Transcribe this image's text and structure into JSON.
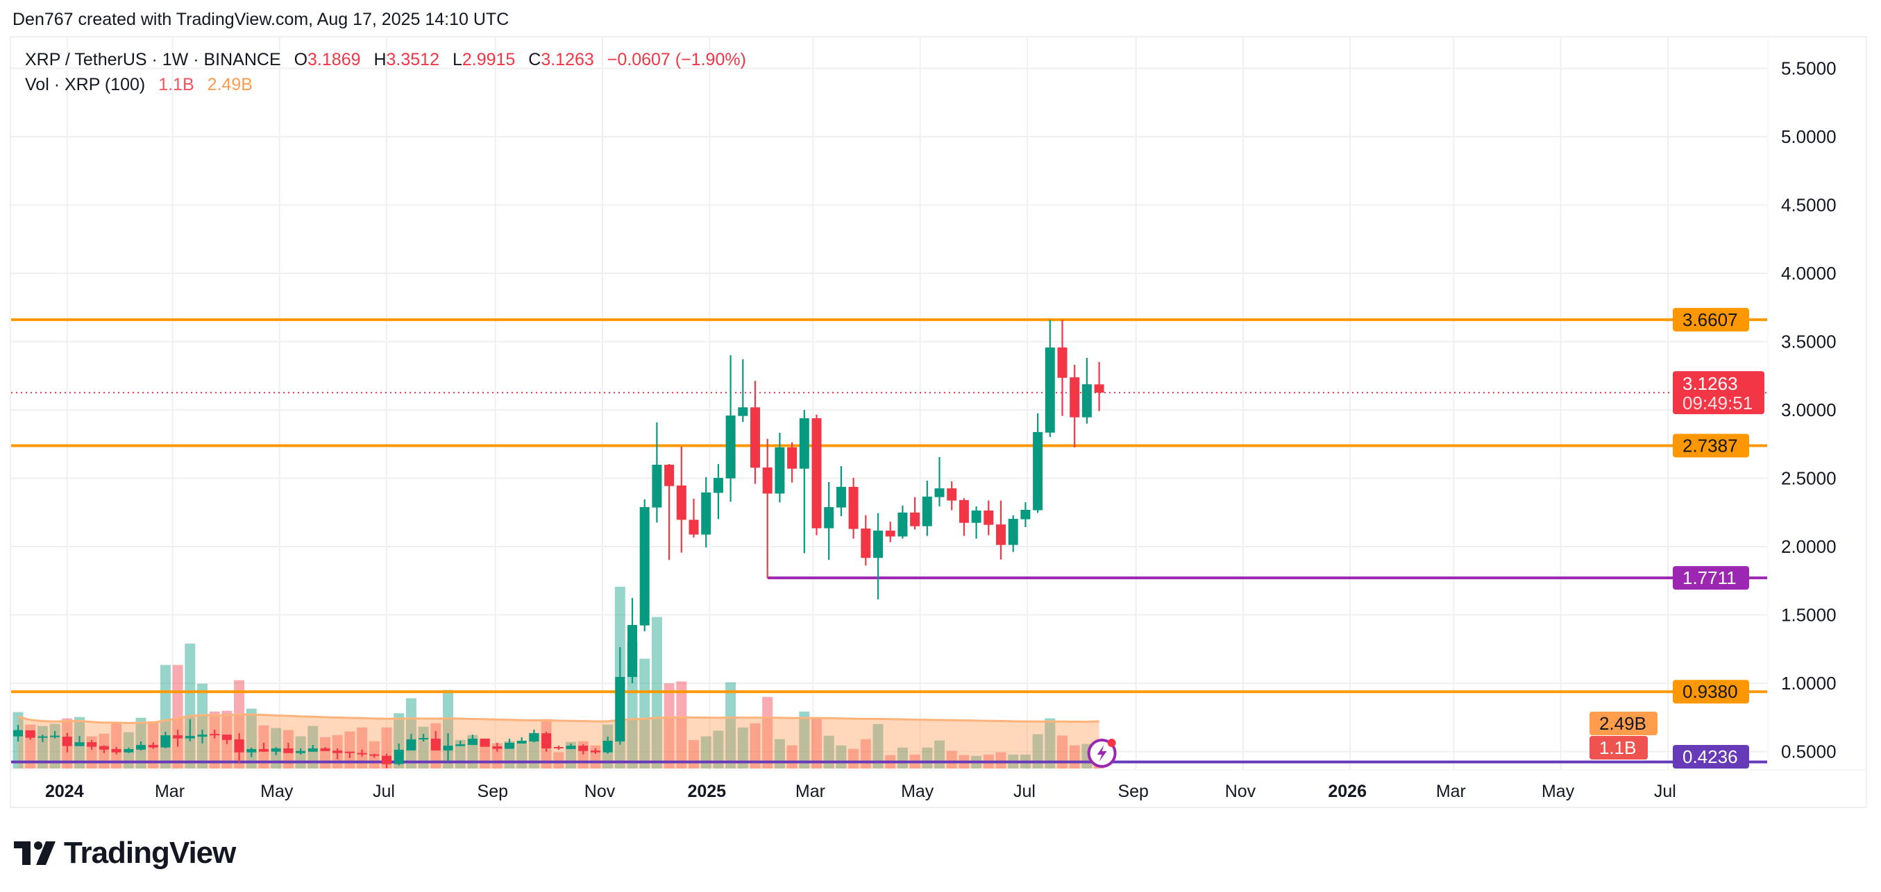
{
  "credit": "Den767 created with TradingView.com, Aug 17, 2025 14:10 UTC",
  "legend": {
    "symbol": "XRP / TetherUS · 1W · BINANCE",
    "o_label": "O",
    "o": "3.1869",
    "h_label": "H",
    "h": "3.3512",
    "l_label": "L",
    "l": "2.9915",
    "c_label": "C",
    "c": "3.1263",
    "change": "−0.0607 (−1.90%)",
    "vol_label": "Vol · XRP (100)",
    "vol": "1.1B",
    "vol_ma": "2.49B"
  },
  "logo": {
    "text": "TradingView"
  },
  "colors": {
    "up": "#089981",
    "down": "#f23645",
    "level_orange": "#ff9800",
    "level_purple": "#9c27b0",
    "level_violet": "#673ab7",
    "vol_ma": "#ff9d4d"
  },
  "chart_data": {
    "type": "candlestick",
    "interval": "1W",
    "yscale": "linear",
    "ylim": [
      0.4,
      5.6
    ],
    "grid": true,
    "price_ticks": [
      "5.5000",
      "5.0000",
      "4.5000",
      "4.0000",
      "3.5000",
      "3.0000",
      "2.5000",
      "2.0000",
      "1.5000",
      "1.0000",
      "0.5000"
    ],
    "time_ticks": [
      {
        "label": "2024",
        "date": "2024-01-01",
        "bold": true
      },
      {
        "label": "Mar",
        "date": "2024-03-01"
      },
      {
        "label": "May",
        "date": "2024-05-01"
      },
      {
        "label": "Jul",
        "date": "2024-07-01"
      },
      {
        "label": "Sep",
        "date": "2024-09-01"
      },
      {
        "label": "Nov",
        "date": "2024-11-01"
      },
      {
        "label": "2025",
        "date": "2025-01-01",
        "bold": true
      },
      {
        "label": "Mar",
        "date": "2025-03-01"
      },
      {
        "label": "May",
        "date": "2025-05-01"
      },
      {
        "label": "Jul",
        "date": "2025-07-01"
      },
      {
        "label": "Sep",
        "date": "2025-09-01"
      },
      {
        "label": "Nov",
        "date": "2025-11-01"
      },
      {
        "label": "2026",
        "date": "2026-01-01",
        "bold": true
      },
      {
        "label": "Mar",
        "date": "2026-03-01"
      },
      {
        "label": "May",
        "date": "2026-05-01"
      },
      {
        "label": "Jul",
        "date": "2026-07-01"
      }
    ],
    "levels": [
      {
        "price": 3.6607,
        "label": "3.6607",
        "color": "#ff9800"
      },
      {
        "price": 2.7387,
        "label": "2.7387",
        "color": "#ff9800"
      },
      {
        "price": 1.7711,
        "label": "1.7711",
        "color": "#9c27b0",
        "from": "2025-02-03"
      },
      {
        "price": 0.938,
        "label": "0.9380",
        "color": "#ff9800"
      },
      {
        "price": 0.4236,
        "label": "0.4236",
        "color": "#673ab7"
      }
    ],
    "last_price": {
      "value": 3.1263,
      "label": "3.1263",
      "countdown": "09:49:51"
    },
    "volume_labels": {
      "ma": "2.49B",
      "last": "1.1B"
    },
    "columns": [
      "date",
      "open",
      "high",
      "low",
      "close",
      "volume_B"
    ],
    "candles": [
      [
        "2023-12-04",
        0.611,
        0.695,
        0.574,
        0.657,
        2.98
      ],
      [
        "2023-12-11",
        0.655,
        0.655,
        0.586,
        0.601,
        2.32
      ],
      [
        "2023-12-18",
        0.601,
        0.624,
        0.57,
        0.611,
        2.25
      ],
      [
        "2023-12-25",
        0.606,
        0.65,
        0.596,
        0.616,
        2.36
      ],
      [
        "2024-01-01",
        0.609,
        0.636,
        0.494,
        0.54,
        2.65
      ],
      [
        "2024-01-08",
        0.54,
        0.614,
        0.54,
        0.568,
        2.72
      ],
      [
        "2024-01-15",
        0.568,
        0.584,
        0.513,
        0.535,
        1.7
      ],
      [
        "2024-01-22",
        0.54,
        0.545,
        0.489,
        0.514,
        1.84
      ],
      [
        "2024-01-29",
        0.518,
        0.533,
        0.479,
        0.494,
        2.39
      ],
      [
        "2024-02-05",
        0.494,
        0.528,
        0.489,
        0.518,
        1.92
      ],
      [
        "2024-02-12",
        0.514,
        0.574,
        0.508,
        0.548,
        2.68
      ],
      [
        "2024-02-19",
        0.548,
        0.568,
        0.52,
        0.53,
        2.5
      ],
      [
        "2024-02-26",
        0.53,
        0.645,
        0.525,
        0.619,
        5.47
      ],
      [
        "2024-03-04",
        0.619,
        0.66,
        0.535,
        0.596,
        5.47
      ],
      [
        "2024-03-11",
        0.596,
        0.736,
        0.575,
        0.614,
        6.6
      ],
      [
        "2024-03-18",
        0.609,
        0.66,
        0.56,
        0.624,
        4.48
      ],
      [
        "2024-03-25",
        0.629,
        0.66,
        0.596,
        0.619,
        3.01
      ],
      [
        "2024-04-01",
        0.624,
        0.624,
        0.555,
        0.585,
        3.05
      ],
      [
        "2024-04-08",
        0.589,
        0.634,
        0.413,
        0.494,
        4.66
      ],
      [
        "2024-04-15",
        0.494,
        0.528,
        0.459,
        0.518,
        3.16
      ],
      [
        "2024-04-22",
        0.518,
        0.564,
        0.499,
        0.499,
        2.28
      ],
      [
        "2024-04-29",
        0.499,
        0.533,
        0.474,
        0.523,
        2.14
      ],
      [
        "2024-05-06",
        0.523,
        0.564,
        0.489,
        0.489,
        2.03
      ],
      [
        "2024-05-13",
        0.489,
        0.523,
        0.479,
        0.504,
        1.7
      ],
      [
        "2024-05-20",
        0.499,
        0.548,
        0.499,
        0.523,
        2.25
      ],
      [
        "2024-05-27",
        0.523,
        0.533,
        0.504,
        0.504,
        1.66
      ],
      [
        "2024-06-03",
        0.507,
        0.523,
        0.443,
        0.489,
        1.77
      ],
      [
        "2024-06-10",
        0.499,
        0.499,
        0.453,
        0.489,
        1.96
      ],
      [
        "2024-06-17",
        0.489,
        0.514,
        0.464,
        0.479,
        2.17
      ],
      [
        "2024-06-24",
        0.479,
        0.484,
        0.453,
        0.469,
        1.44
      ],
      [
        "2024-07-01",
        0.469,
        0.484,
        0.379,
        0.408,
        2.17
      ],
      [
        "2024-07-08",
        0.408,
        0.558,
        0.399,
        0.513,
        2.92
      ],
      [
        "2024-07-15",
        0.508,
        0.629,
        0.508,
        0.589,
        3.71
      ],
      [
        "2024-07-22",
        0.589,
        0.629,
        0.574,
        0.599,
        2.21
      ],
      [
        "2024-07-29",
        0.594,
        0.65,
        0.508,
        0.508,
        2.39
      ],
      [
        "2024-08-05",
        0.508,
        0.634,
        0.428,
        0.543,
        4.15
      ],
      [
        "2024-08-12",
        0.54,
        0.579,
        0.54,
        0.553,
        1.51
      ],
      [
        "2024-08-19",
        0.548,
        0.624,
        0.548,
        0.594,
        1.77
      ],
      [
        "2024-08-26",
        0.594,
        0.594,
        0.535,
        0.535,
        1.59
      ],
      [
        "2024-09-02",
        0.538,
        0.564,
        0.499,
        0.52,
        1.33
      ],
      [
        "2024-09-09",
        0.52,
        0.594,
        0.52,
        0.564,
        1.44
      ],
      [
        "2024-09-16",
        0.558,
        0.604,
        0.558,
        0.579,
        1.3
      ],
      [
        "2024-09-23",
        0.574,
        0.66,
        0.568,
        0.634,
        1.88
      ],
      [
        "2024-09-30",
        0.634,
        0.645,
        0.499,
        0.523,
        2.61
      ],
      [
        "2024-10-07",
        0.533,
        0.543,
        0.513,
        0.523,
        0.86
      ],
      [
        "2024-10-14",
        0.518,
        0.558,
        0.518,
        0.543,
        1.41
      ],
      [
        "2024-10-21",
        0.543,
        0.553,
        0.479,
        0.504,
        1.44
      ],
      [
        "2024-10-28",
        0.507,
        0.523,
        0.484,
        0.494,
        1.22
      ],
      [
        "2024-11-04",
        0.494,
        0.609,
        0.484,
        0.579,
        2.32
      ],
      [
        "2024-11-11",
        0.574,
        1.264,
        0.55,
        1.046,
        9.6
      ],
      [
        "2024-11-18",
        1.046,
        1.624,
        1.0,
        1.426,
        6.7
      ],
      [
        "2024-11-25",
        1.423,
        2.345,
        1.38,
        2.289,
        5.8
      ],
      [
        "2024-12-02",
        2.286,
        2.909,
        2.176,
        2.599,
        8.0
      ],
      [
        "2024-12-09",
        2.599,
        2.604,
        1.902,
        2.443,
        4.5
      ],
      [
        "2024-12-16",
        2.447,
        2.731,
        1.956,
        2.196,
        4.6
      ],
      [
        "2024-12-23",
        2.196,
        2.35,
        2.066,
        2.088,
        1.5
      ],
      [
        "2024-12-30",
        2.088,
        2.509,
        1.993,
        2.396,
        1.7
      ],
      [
        "2025-01-06",
        2.393,
        2.604,
        2.201,
        2.503,
        2.0
      ],
      [
        "2025-01-13",
        2.499,
        3.401,
        2.328,
        2.959,
        4.55
      ],
      [
        "2025-01-20",
        2.956,
        3.371,
        2.912,
        3.019,
        2.17
      ],
      [
        "2025-01-27",
        3.019,
        3.213,
        2.459,
        2.577,
        2.39
      ],
      [
        "2025-02-03",
        2.579,
        2.789,
        1.77,
        2.388,
        3.78
      ],
      [
        "2025-02-10",
        2.388,
        2.833,
        2.323,
        2.726,
        1.55
      ],
      [
        "2025-02-17",
        2.726,
        2.763,
        2.469,
        2.57,
        1.22
      ],
      [
        "2025-02-24",
        2.57,
        3.0,
        1.951,
        2.939,
        3.01
      ],
      [
        "2025-03-03",
        2.939,
        2.966,
        2.083,
        2.134,
        2.65
      ],
      [
        "2025-03-10",
        2.134,
        2.472,
        1.902,
        2.289,
        1.73
      ],
      [
        "2025-03-17",
        2.286,
        2.589,
        2.222,
        2.437,
        1.22
      ],
      [
        "2025-03-24",
        2.437,
        2.503,
        2.058,
        2.129,
        1.04
      ],
      [
        "2025-03-31",
        2.132,
        2.229,
        1.861,
        1.917,
        1.55
      ],
      [
        "2025-04-07",
        1.917,
        2.244,
        1.613,
        2.117,
        2.35
      ],
      [
        "2025-04-14",
        2.117,
        2.183,
        2.032,
        2.074,
        0.71
      ],
      [
        "2025-04-21",
        2.074,
        2.3,
        2.058,
        2.249,
        1.11
      ],
      [
        "2025-04-28",
        2.249,
        2.362,
        2.125,
        2.149,
        0.74
      ],
      [
        "2025-05-05",
        2.149,
        2.482,
        2.078,
        2.366,
        1.11
      ],
      [
        "2025-05-12",
        2.362,
        2.655,
        2.294,
        2.426,
        1.48
      ],
      [
        "2025-05-19",
        2.426,
        2.477,
        2.266,
        2.337,
        0.93
      ],
      [
        "2025-05-26",
        2.34,
        2.354,
        2.078,
        2.174,
        0.71
      ],
      [
        "2025-06-02",
        2.174,
        2.294,
        2.058,
        2.264,
        0.67
      ],
      [
        "2025-06-09",
        2.264,
        2.337,
        2.083,
        2.159,
        0.74
      ],
      [
        "2025-06-16",
        2.162,
        2.337,
        1.905,
        2.012,
        0.86
      ],
      [
        "2025-06-23",
        2.012,
        2.229,
        1.961,
        2.203,
        0.74
      ],
      [
        "2025-06-30",
        2.2,
        2.325,
        2.142,
        2.269,
        0.74
      ],
      [
        "2025-07-07",
        2.266,
        2.975,
        2.247,
        2.838,
        1.81
      ],
      [
        "2025-07-14",
        2.834,
        3.66,
        2.802,
        3.457,
        2.65
      ],
      [
        "2025-07-21",
        3.457,
        3.66,
        2.956,
        3.235,
        1.74
      ],
      [
        "2025-07-28",
        3.239,
        3.33,
        2.726,
        2.946,
        1.22
      ],
      [
        "2025-08-04",
        2.946,
        3.381,
        2.9,
        3.188,
        1.3
      ],
      [
        "2025-08-11",
        3.1869,
        3.3512,
        2.9915,
        3.1263,
        1.1
      ]
    ]
  }
}
